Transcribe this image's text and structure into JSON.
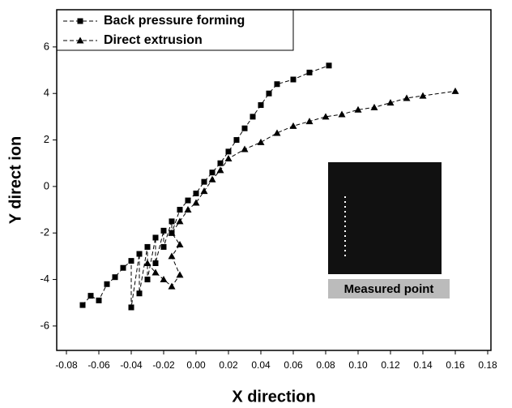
{
  "chart_data": {
    "type": "line",
    "xlabel": "X direction",
    "ylabel": "Y direct ion",
    "annotation": "Measured point",
    "xlim": [
      -0.086,
      0.182
    ],
    "ylim": [
      -7.05,
      7.6
    ],
    "xticks": [
      {
        "value": -0.08,
        "label": "-0.08"
      },
      {
        "value": -0.06,
        "label": "-0.06"
      },
      {
        "value": -0.04,
        "label": "-0.04"
      },
      {
        "value": -0.02,
        "label": "-0.02"
      },
      {
        "value": 0,
        "label": "0.00"
      },
      {
        "value": 0.02,
        "label": "0.02"
      },
      {
        "value": 0.04,
        "label": "0.04"
      },
      {
        "value": 0.06,
        "label": "0.06"
      },
      {
        "value": 0.08,
        "label": "0.08"
      },
      {
        "value": 0.1,
        "label": "0.10"
      },
      {
        "value": 0.12,
        "label": "0.12"
      },
      {
        "value": 0.14,
        "label": "0.14"
      },
      {
        "value": 0.16,
        "label": "0.16"
      },
      {
        "value": 0.18,
        "label": "0.18"
      }
    ],
    "yticks": [
      -6,
      -4,
      -2,
      0,
      2,
      4,
      6
    ],
    "legend": "upper left",
    "series": [
      {
        "name": "Back pressure forming",
        "color": "#000000",
        "marker": "square",
        "x": [
          -0.07,
          -0.065,
          -0.06,
          -0.055,
          -0.05,
          -0.045,
          -0.04,
          -0.04,
          -0.035,
          -0.035,
          -0.03,
          -0.03,
          -0.025,
          -0.025,
          -0.02,
          -0.02,
          -0.015,
          -0.015,
          -0.01,
          -0.005,
          0.0,
          0.005,
          0.01,
          0.015,
          0.02,
          0.025,
          0.03,
          0.035,
          0.04,
          0.045,
          0.05,
          0.06,
          0.07,
          0.082
        ],
        "values": [
          -5.1,
          -4.7,
          -4.9,
          -4.2,
          -3.9,
          -3.5,
          -3.2,
          -5.2,
          -2.9,
          -4.6,
          -2.6,
          -4.0,
          -2.2,
          -3.3,
          -1.9,
          -2.6,
          -1.5,
          -2.0,
          -1.0,
          -0.6,
          -0.3,
          0.2,
          0.6,
          1.0,
          1.5,
          2.0,
          2.5,
          3.0,
          3.5,
          4.0,
          4.4,
          4.6,
          4.9,
          5.2
        ]
      },
      {
        "name": "Direct extrusion",
        "color": "#000000",
        "marker": "triangle",
        "x": [
          -0.03,
          -0.025,
          -0.02,
          -0.015,
          -0.01,
          -0.015,
          -0.01,
          -0.015,
          -0.01,
          -0.005,
          0.0,
          0.005,
          0.01,
          0.015,
          0.02,
          0.03,
          0.04,
          0.05,
          0.06,
          0.07,
          0.08,
          0.09,
          0.1,
          0.11,
          0.12,
          0.13,
          0.14,
          0.16
        ],
        "values": [
          -3.3,
          -3.7,
          -4.0,
          -4.3,
          -3.8,
          -3.0,
          -2.5,
          -2.0,
          -1.5,
          -1.0,
          -0.7,
          -0.2,
          0.3,
          0.7,
          1.2,
          1.6,
          1.9,
          2.3,
          2.6,
          2.8,
          3.0,
          3.1,
          3.3,
          3.4,
          3.6,
          3.8,
          3.9,
          4.1
        ]
      }
    ]
  }
}
